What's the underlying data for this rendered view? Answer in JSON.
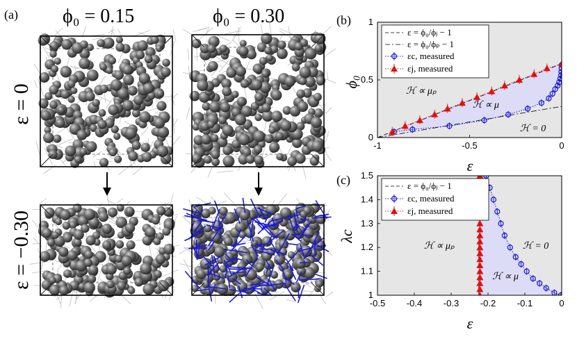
{
  "panel_a": {
    "label": "(a)",
    "col_titles": [
      "ϕ₀ = 0.15",
      "ϕ₀ = 0.30"
    ],
    "row_titles": [
      "ε = 0",
      "ε = −0.30"
    ]
  },
  "chart_data": [
    {
      "panel": "(b)",
      "type": "line",
      "xlabel": "ε",
      "ylabel": "ϕ₀",
      "xlim": [
        -1,
        0
      ],
      "ylim": [
        0,
        1
      ],
      "xticks": [
        "-1",
        "-0.5",
        "0"
      ],
      "yticks": [
        "0",
        "0.5",
        "1"
      ],
      "legend_position": "top-left",
      "legend": [
        "ε = ϕ₀/ϕⱼ − 1",
        "ε = ϕ₀/ϕₚ − 1",
        "εc, measured",
        "εj, measured"
      ],
      "regions": [
        "ℋ ∝ μₚ",
        "ℋ ∝ μ",
        "ℋ = 0"
      ],
      "series": [
        {
          "name": "ε = ϕ₀/ϕj − 1",
          "style": "dashed",
          "x": [
            -1,
            0
          ],
          "y": [
            0,
            0.64
          ]
        },
        {
          "name": "ε = ϕ₀/ϕp − 1",
          "style": "dashdot",
          "x": [
            -1,
            0
          ],
          "y": [
            0,
            0.27
          ]
        },
        {
          "name": "εc, measured",
          "marker": "circle",
          "x": [
            -0.91,
            -0.81,
            -0.61,
            -0.42,
            -0.29,
            -0.185,
            -0.11,
            -0.07,
            -0.05,
            -0.035,
            -0.022,
            -0.014,
            -0.008,
            -0.004,
            -0.002,
            -0.001,
            0
          ],
          "y": [
            0.05,
            0.07,
            0.1,
            0.15,
            0.2,
            0.25,
            0.3,
            0.34,
            0.38,
            0.42,
            0.45,
            0.48,
            0.51,
            0.54,
            0.57,
            0.6,
            0.63
          ]
        },
        {
          "name": "εj, measured",
          "marker": "triangle",
          "x": [
            -0.92,
            -0.85,
            -0.77,
            -0.69,
            -0.62,
            -0.54,
            -0.46,
            -0.38,
            -0.31,
            -0.23,
            -0.15,
            -0.08,
            0
          ],
          "y": [
            0.05,
            0.1,
            0.15,
            0.2,
            0.25,
            0.3,
            0.35,
            0.4,
            0.45,
            0.5,
            0.55,
            0.6,
            0.64
          ]
        }
      ]
    },
    {
      "panel": "(c)",
      "type": "line",
      "xlabel": "ε",
      "ylabel": "λc",
      "xlim": [
        -0.5,
        0
      ],
      "ylim": [
        1,
        1.5
      ],
      "xticks": [
        "-0.5",
        "-0.4",
        "-0.3",
        "-0.2",
        "-0.1",
        "0"
      ],
      "yticks": [
        "1",
        "1.1",
        "1.2",
        "1.3",
        "1.4",
        "1.5"
      ],
      "legend_position": "top-left",
      "legend": [
        "ε = ϕ₀/ϕⱼ − 1",
        "εc, measured",
        "εj, measured"
      ],
      "regions": [
        "ℋ ∝ μₚ",
        "ℋ = 0",
        "ℋ ∝ μ"
      ],
      "series": [
        {
          "name": "ε = ϕ₀/ϕj − 1",
          "style": "dashed",
          "x": [
            -0.225,
            -0.225
          ],
          "y": [
            1,
            1.5
          ]
        },
        {
          "name": "εc, measured",
          "marker": "circle",
          "x": [
            -0.205,
            -0.195,
            -0.185,
            -0.175,
            -0.165,
            -0.155,
            -0.14,
            -0.125,
            -0.11,
            -0.095,
            -0.078,
            -0.06,
            -0.042,
            -0.02,
            -0.002
          ],
          "y": [
            1.5,
            1.45,
            1.4,
            1.35,
            1.3,
            1.25,
            1.2,
            1.16,
            1.13,
            1.1,
            1.07,
            1.05,
            1.03,
            1.01,
            1.0
          ]
        },
        {
          "name": "εj, measured",
          "marker": "triangle",
          "x": [
            -0.222,
            -0.222,
            -0.222,
            -0.222,
            -0.222,
            -0.222,
            -0.222,
            -0.222,
            -0.222,
            -0.222,
            -0.222,
            -0.222,
            -0.222,
            -0.222,
            -0.222,
            -0.222,
            -0.222,
            -0.222,
            -0.222,
            -0.222,
            -0.222
          ],
          "y": [
            1.0,
            1.025,
            1.05,
            1.075,
            1.1,
            1.125,
            1.15,
            1.175,
            1.2,
            1.225,
            1.25,
            1.275,
            1.3,
            1.325,
            1.35,
            1.375,
            1.4,
            1.425,
            1.45,
            1.475,
            1.5
          ]
        }
      ]
    }
  ],
  "colors": {
    "blue": "#1414d4",
    "red": "#e01010",
    "fill": "#dcdcf6",
    "gray_bg": "#e6e6e6"
  }
}
